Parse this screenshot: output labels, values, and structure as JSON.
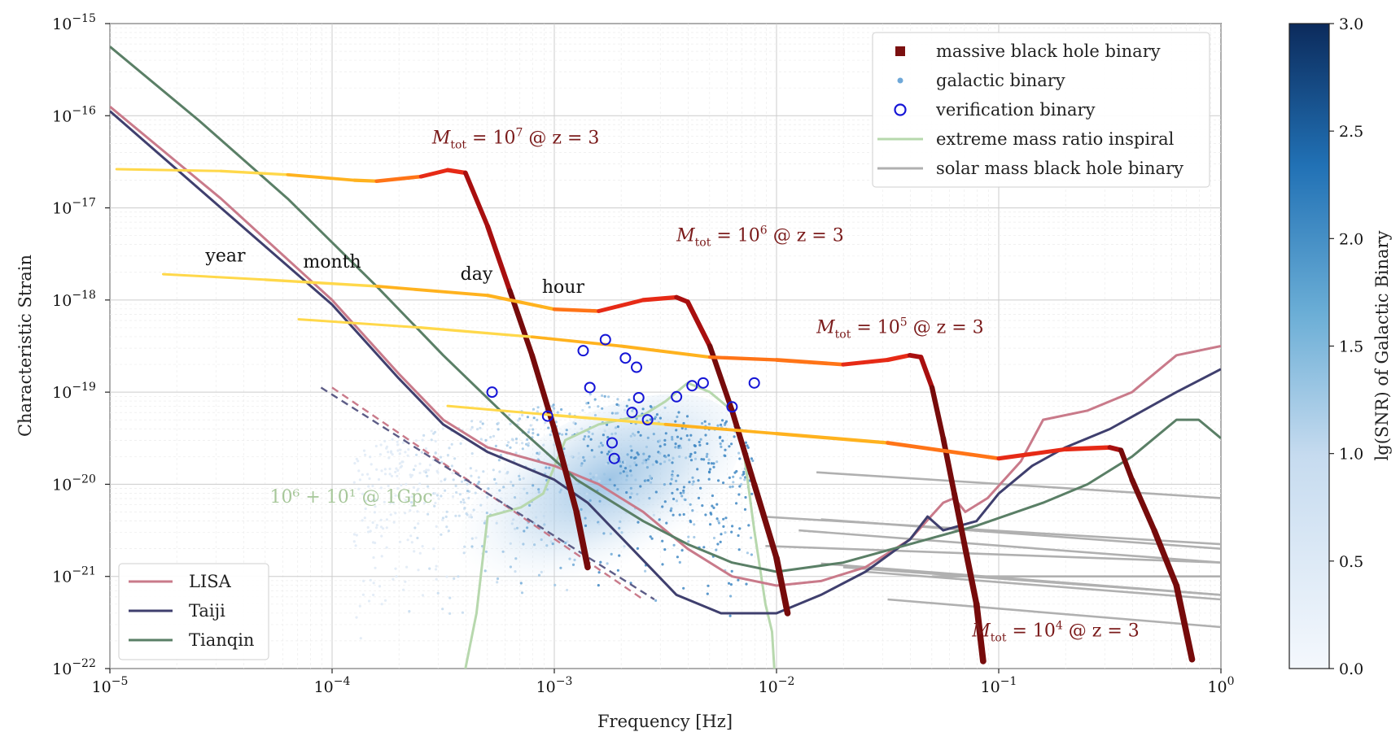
{
  "chart_data": {
    "type": "line",
    "xlabel": "Frequency [Hz]",
    "ylabel": "Characteristic Strain",
    "xscale": "log",
    "yscale": "log",
    "xlim": [
      1e-05,
      1
    ],
    "ylim": [
      1e-22,
      1e-15
    ],
    "x_ticks": [
      {
        "exp": -5,
        "base": "10",
        "power": "−5"
      },
      {
        "exp": -4,
        "base": "10",
        "power": "−4"
      },
      {
        "exp": -3,
        "base": "10",
        "power": "−3"
      },
      {
        "exp": -2,
        "base": "10",
        "power": "−2"
      },
      {
        "exp": -1,
        "base": "10",
        "power": "−1"
      },
      {
        "exp": 0,
        "base": "10",
        "power": "0"
      }
    ],
    "y_ticks": [
      {
        "exp": -15,
        "base": "10",
        "power": "−15"
      },
      {
        "exp": -16,
        "base": "10",
        "power": "−16"
      },
      {
        "exp": -17,
        "base": "10",
        "power": "−17"
      },
      {
        "exp": -18,
        "base": "10",
        "power": "−18"
      },
      {
        "exp": -19,
        "base": "10",
        "power": "−19"
      },
      {
        "exp": -20,
        "base": "10",
        "power": "−20"
      },
      {
        "exp": -21,
        "base": "10",
        "power": "−21"
      },
      {
        "exp": -22,
        "base": "10",
        "power": "−22"
      }
    ],
    "detectors": [
      {
        "name": "LISA",
        "color": "#c97a8a",
        "points": [
          [
            -5,
            -15.9
          ],
          [
            -4.5,
            -16.9
          ],
          [
            -4,
            -18.0
          ],
          [
            -3.7,
            -18.8
          ],
          [
            -3.5,
            -19.3
          ],
          [
            -3.3,
            -19.6
          ],
          [
            -3.0,
            -19.8
          ],
          [
            -2.8,
            -20.0
          ],
          [
            -2.6,
            -20.3
          ],
          [
            -2.4,
            -20.7
          ],
          [
            -2.2,
            -21.0
          ],
          [
            -2.0,
            -21.1
          ],
          [
            -1.8,
            -21.05
          ],
          [
            -1.6,
            -20.9
          ],
          [
            -1.4,
            -20.6
          ],
          [
            -1.25,
            -20.2
          ],
          [
            -1.2,
            -20.15
          ],
          [
            -1.15,
            -20.3
          ],
          [
            -1.05,
            -20.15
          ],
          [
            -0.9,
            -19.75
          ],
          [
            -0.8,
            -19.3
          ],
          [
            -0.6,
            -19.2
          ],
          [
            -0.4,
            -19.0
          ],
          [
            -0.2,
            -18.6
          ],
          [
            0,
            -18.5
          ]
        ]
      },
      {
        "name": "Taiji",
        "color": "#3f3f6e",
        "points": [
          [
            -5,
            -15.95
          ],
          [
            -4.5,
            -17.0
          ],
          [
            -4,
            -18.05
          ],
          [
            -3.7,
            -18.85
          ],
          [
            -3.5,
            -19.35
          ],
          [
            -3.3,
            -19.65
          ],
          [
            -3.0,
            -19.95
          ],
          [
            -2.85,
            -20.2
          ],
          [
            -2.65,
            -20.7
          ],
          [
            -2.45,
            -21.2
          ],
          [
            -2.25,
            -21.4
          ],
          [
            -2.0,
            -21.4
          ],
          [
            -1.8,
            -21.2
          ],
          [
            -1.6,
            -20.95
          ],
          [
            -1.4,
            -20.6
          ],
          [
            -1.32,
            -20.35
          ],
          [
            -1.25,
            -20.5
          ],
          [
            -1.1,
            -20.4
          ],
          [
            -1.0,
            -20.1
          ],
          [
            -0.85,
            -19.8
          ],
          [
            -0.7,
            -19.6
          ],
          [
            -0.5,
            -19.4
          ],
          [
            -0.2,
            -19.0
          ],
          [
            0,
            -18.75
          ]
        ]
      },
      {
        "name": "Tianqin",
        "color": "#5a7f66",
        "points": [
          [
            -5,
            -15.25
          ],
          [
            -4.6,
            -16.05
          ],
          [
            -4.2,
            -16.9
          ],
          [
            -3.8,
            -17.85
          ],
          [
            -3.5,
            -18.6
          ],
          [
            -3.2,
            -19.3
          ],
          [
            -2.9,
            -19.95
          ],
          [
            -2.6,
            -20.4
          ],
          [
            -2.4,
            -20.65
          ],
          [
            -2.2,
            -20.85
          ],
          [
            -2.0,
            -20.95
          ],
          [
            -1.7,
            -20.85
          ],
          [
            -1.4,
            -20.65
          ],
          [
            -1.1,
            -20.45
          ],
          [
            -0.8,
            -20.2
          ],
          [
            -0.6,
            -20.0
          ],
          [
            -0.4,
            -19.7
          ],
          [
            -0.2,
            -19.3
          ],
          [
            -0.1,
            -19.3
          ],
          [
            0,
            -19.5
          ]
        ]
      }
    ],
    "mbhb_tracks": [
      {
        "label_pre": "M",
        "label_sub": "tot",
        "label_mid": " = 10",
        "label_sup": "7",
        "label_post": " @ z = 3",
        "points": [
          [
            -4.97,
            -16.58
          ],
          [
            -4.5,
            -16.6
          ],
          [
            -4.2,
            -16.64
          ],
          [
            -3.9,
            -16.7
          ],
          [
            -3.8,
            -16.71
          ],
          [
            -3.6,
            -16.66
          ],
          [
            -3.48,
            -16.59
          ],
          [
            -3.4,
            -16.62
          ],
          [
            -3.3,
            -17.2
          ],
          [
            -3.2,
            -17.9
          ],
          [
            -3.1,
            -18.6
          ],
          [
            -3.0,
            -19.4
          ],
          [
            -2.9,
            -20.3
          ],
          [
            -2.85,
            -20.9
          ]
        ]
      },
      {
        "label_pre": "M",
        "label_sub": "tot",
        "label_mid": " = 10",
        "label_sup": "6",
        "label_post": " @ z = 3",
        "points": [
          [
            -4.76,
            -17.72
          ],
          [
            -4.3,
            -17.78
          ],
          [
            -3.8,
            -17.85
          ],
          [
            -3.3,
            -17.95
          ],
          [
            -3.0,
            -18.1
          ],
          [
            -2.8,
            -18.12
          ],
          [
            -2.6,
            -18.0
          ],
          [
            -2.45,
            -17.97
          ],
          [
            -2.4,
            -18.02
          ],
          [
            -2.3,
            -18.5
          ],
          [
            -2.2,
            -19.2
          ],
          [
            -2.1,
            -20.0
          ],
          [
            -2.0,
            -20.8
          ],
          [
            -1.95,
            -21.4
          ]
        ]
      },
      {
        "label_pre": "M",
        "label_sub": "tot",
        "label_mid": " = 10",
        "label_sup": "5",
        "label_post": " @ z = 3",
        "points": [
          [
            -4.15,
            -18.21
          ],
          [
            -3.6,
            -18.3
          ],
          [
            -3.1,
            -18.4
          ],
          [
            -2.7,
            -18.5
          ],
          [
            -2.3,
            -18.62
          ],
          [
            -2.0,
            -18.65
          ],
          [
            -1.7,
            -18.7
          ],
          [
            -1.5,
            -18.65
          ],
          [
            -1.4,
            -18.6
          ],
          [
            -1.35,
            -18.62
          ],
          [
            -1.3,
            -18.95
          ],
          [
            -1.25,
            -19.5
          ],
          [
            -1.2,
            -20.1
          ],
          [
            -1.15,
            -20.7
          ],
          [
            -1.1,
            -21.3
          ],
          [
            -1.07,
            -21.92
          ]
        ]
      },
      {
        "label_pre": "M",
        "label_sub": "tot",
        "label_mid": " = 10",
        "label_sup": "4",
        "label_post": " @ z = 3",
        "points": [
          [
            -3.48,
            -19.15
          ],
          [
            -3.0,
            -19.25
          ],
          [
            -2.5,
            -19.35
          ],
          [
            -2.0,
            -19.45
          ],
          [
            -1.5,
            -19.55
          ],
          [
            -1.0,
            -19.72
          ],
          [
            -0.7,
            -19.62
          ],
          [
            -0.5,
            -19.6
          ],
          [
            -0.45,
            -19.63
          ],
          [
            -0.4,
            -19.95
          ],
          [
            -0.3,
            -20.5
          ],
          [
            -0.2,
            -21.1
          ],
          [
            -0.13,
            -21.9
          ]
        ]
      }
    ],
    "verification_binaries": [
      [
        -3.28,
        -19.0
      ],
      [
        -3.03,
        -19.26
      ],
      [
        -2.87,
        -18.55
      ],
      [
        -2.84,
        -18.95
      ],
      [
        -2.77,
        -18.43
      ],
      [
        -2.74,
        -19.55
      ],
      [
        -2.73,
        -19.72
      ],
      [
        -2.68,
        -18.63
      ],
      [
        -2.65,
        -19.22
      ],
      [
        -2.63,
        -18.73
      ],
      [
        -2.62,
        -19.06
      ],
      [
        -2.58,
        -19.3
      ],
      [
        -2.45,
        -19.05
      ],
      [
        -2.38,
        -18.93
      ],
      [
        -2.33,
        -18.9
      ],
      [
        -2.2,
        -19.16
      ],
      [
        -2.1,
        -18.9
      ]
    ],
    "emri_curve": [
      [
        -3.4,
        -22.0
      ],
      [
        -3.35,
        -21.4
      ],
      [
        -3.3,
        -20.35
      ],
      [
        -3.15,
        -20.25
      ],
      [
        -3.05,
        -20.1
      ],
      [
        -2.95,
        -19.52
      ],
      [
        -2.8,
        -19.35
      ],
      [
        -2.7,
        -19.3
      ],
      [
        -2.6,
        -19.25
      ],
      [
        -2.5,
        -19.1
      ],
      [
        -2.4,
        -18.9
      ],
      [
        -2.3,
        -19.0
      ],
      [
        -2.2,
        -19.2
      ],
      [
        -2.15,
        -19.6
      ],
      [
        -2.1,
        -20.5
      ],
      [
        -2.05,
        -21.3
      ],
      [
        -2.02,
        -21.6
      ],
      [
        -2.01,
        -22.0
      ]
    ],
    "solar_mass_bhb_lines": [
      [
        [
          -1.82,
          -19.87
        ],
        [
          0,
          -20.15
        ]
      ],
      [
        [
          -2.07,
          -20.35
        ],
        [
          0,
          -20.65
        ]
      ],
      [
        [
          -1.8,
          -20.38
        ],
        [
          0,
          -20.7
        ]
      ],
      [
        [
          -2.05,
          -20.67
        ],
        [
          0,
          -20.85
        ]
      ],
      [
        [
          -1.9,
          -20.5
        ],
        [
          0,
          -20.85
        ]
      ],
      [
        [
          -1.8,
          -20.86
        ],
        [
          0,
          -21.2
        ]
      ],
      [
        [
          -1.7,
          -20.9
        ],
        [
          0,
          -21.2
        ]
      ],
      [
        [
          -1.6,
          -20.95
        ],
        [
          0,
          -21.25
        ]
      ],
      [
        [
          -1.5,
          -21.25
        ],
        [
          0,
          -21.55
        ]
      ],
      [
        [
          -1.3,
          -21.0
        ],
        [
          0,
          -21.0
        ]
      ]
    ],
    "colorbar": {
      "label": "lg(SNR) of Galactic Binary",
      "min": 0.0,
      "max": 3.0,
      "ticks": [
        "0.0",
        "0.5",
        "1.0",
        "1.5",
        "2.0",
        "2.5",
        "3.0"
      ],
      "tick_values": [
        0.0,
        0.5,
        1.0,
        1.5,
        2.0,
        2.5,
        3.0
      ],
      "color_low": "#f4f8fd",
      "color_high": "#0c2b5c"
    },
    "legend_top_right": [
      {
        "kind": "square",
        "label": "massive black hole binary",
        "color": "#7b1010"
      },
      {
        "kind": "dot",
        "label": "galactic binary",
        "color": "#6fa8d8"
      },
      {
        "kind": "circle",
        "label": "verification binary",
        "color": "#1515d6"
      },
      {
        "kind": "line",
        "label": "extreme mass ratio inspiral",
        "color": "#b7d8ad"
      },
      {
        "kind": "line",
        "label": "solar mass black hole binary",
        "color": "#b0b0b0"
      }
    ],
    "legend_bottom_left": [
      {
        "label": "LISA",
        "color": "#c97a8a"
      },
      {
        "label": "Taiji",
        "color": "#3f3f6e"
      },
      {
        "label": "Tianqin",
        "color": "#5a7f66"
      }
    ],
    "time_annotations": [
      {
        "text": "year",
        "x": -4.48,
        "y": -17.58
      },
      {
        "text": "month",
        "x": -4.0,
        "y": -17.65
      },
      {
        "text": "day",
        "x": -3.35,
        "y": -17.78
      },
      {
        "text": "hour",
        "x": -2.96,
        "y": -17.92
      }
    ],
    "emri_annotation": {
      "text": "10⁶ + 10¹ @ 1Gpc",
      "x": -4.28,
      "y": -20.2
    },
    "mbhb_label_positions": [
      [
        -3.55,
        -16.3
      ],
      [
        -2.45,
        -17.36
      ],
      [
        -1.82,
        -18.36
      ],
      [
        -1.12,
        -21.65
      ]
    ]
  }
}
